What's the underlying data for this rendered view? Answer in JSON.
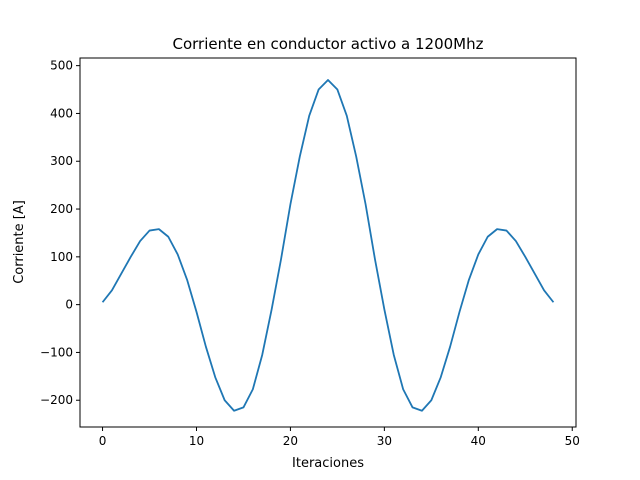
{
  "chart_data": {
    "type": "line",
    "title": "Corriente en conductor activo a 1200Mhz",
    "xlabel": "Iteraciones",
    "ylabel": "Corriente [A]",
    "xlim": [
      -2.4,
      50.4
    ],
    "ylim": [
      -256,
      516
    ],
    "xticks": [
      0,
      10,
      20,
      30,
      40,
      50
    ],
    "yticks": [
      -200,
      -100,
      0,
      100,
      200,
      300,
      400,
      500
    ],
    "xtick_labels": [
      "0",
      "10",
      "20",
      "30",
      "40",
      "50"
    ],
    "ytick_labels": [
      "−200",
      "−100",
      "0",
      "100",
      "200",
      "300",
      "400",
      "500"
    ],
    "grid": false,
    "color": "#1f77b4",
    "series": [
      {
        "x": [
          0,
          1,
          2,
          3,
          4,
          5,
          6,
          7,
          8,
          9,
          10,
          11,
          12,
          13,
          14,
          15,
          16,
          17,
          18,
          19,
          20,
          21,
          22,
          23,
          24,
          25,
          26,
          27,
          28,
          29,
          30,
          31,
          32,
          33,
          34,
          35,
          36,
          37,
          38,
          39,
          40,
          41,
          42,
          43,
          44,
          45,
          46,
          47,
          48
        ],
        "values": [
          5,
          30,
          65,
          100,
          133,
          155,
          158,
          142,
          105,
          52,
          -15,
          -88,
          -152,
          -200,
          -222,
          -215,
          -177,
          -105,
          -10,
          95,
          210,
          310,
          395,
          450,
          470,
          450,
          395,
          310,
          210,
          95,
          -10,
          -105,
          -177,
          -215,
          -222,
          -200,
          -152,
          -88,
          -15,
          52,
          105,
          142,
          158,
          155,
          133,
          100,
          65,
          30,
          5
        ]
      }
    ]
  }
}
